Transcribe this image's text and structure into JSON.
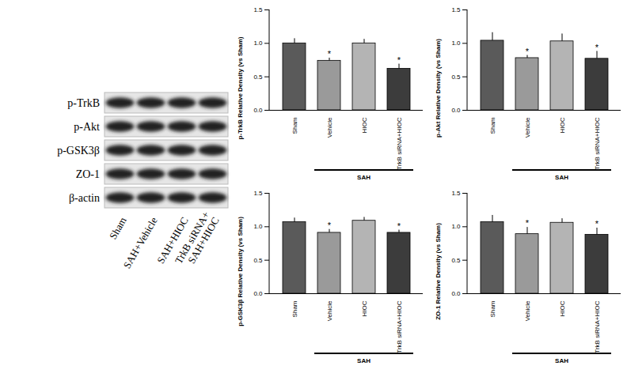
{
  "chart_data": [
    {
      "type": "bar",
      "y_label": "p-TrkB Relative Density (vs Sham)",
      "categories": [
        "Sham",
        "Vehicle",
        "HIOC",
        "TrkB siRNA+HIOC"
      ],
      "values": [
        1.0,
        0.74,
        1.0,
        0.62
      ],
      "errors": [
        0.07,
        0.04,
        0.06,
        0.07
      ],
      "colors": [
        "#5a5a5a",
        "#9a9a9a",
        "#b4b4b4",
        "#3c3c3c"
      ],
      "ylim": [
        0,
        1.5
      ],
      "yticks": [
        {
          "value": 0,
          "label": "0.0"
        },
        {
          "value": 0.5,
          "label": "0.5"
        },
        {
          "value": 1,
          "label": "1.0"
        },
        {
          "value": 1.5,
          "label": "1.5"
        }
      ],
      "annotations": [
        {
          "category": "Vehicle",
          "text": "*"
        },
        {
          "category": "TrkB siRNA+HIOC",
          "text": "*"
        }
      ],
      "group": {
        "label": "SAH",
        "categories": [
          "Vehicle",
          "HIOC",
          "TrkB siRNA+HIOC"
        ]
      }
    },
    {
      "type": "bar",
      "y_label": "p-Akt Relative Density (vs Sham)",
      "categories": [
        "Sham",
        "Vehicle",
        "HIOC",
        "TrkB siRNA+HIOC"
      ],
      "values": [
        1.04,
        0.78,
        1.03,
        0.77
      ],
      "errors": [
        0.12,
        0.04,
        0.11,
        0.11
      ],
      "colors": [
        "#5a5a5a",
        "#9a9a9a",
        "#b4b4b4",
        "#3c3c3c"
      ],
      "ylim": [
        0,
        1.5
      ],
      "yticks": [
        {
          "value": 0,
          "label": "0.0"
        },
        {
          "value": 0.5,
          "label": "0.5"
        },
        {
          "value": 1,
          "label": "1.0"
        },
        {
          "value": 1.5,
          "label": "1.5"
        }
      ],
      "annotations": [
        {
          "category": "Vehicle",
          "text": "*"
        },
        {
          "category": "TrkB siRNA+HIOC",
          "text": "*"
        }
      ],
      "group": {
        "label": "SAH",
        "categories": [
          "Vehicle",
          "HIOC",
          "TrkB siRNA+HIOC"
        ]
      }
    },
    {
      "type": "bar",
      "y_label": "p-GSK3β Relative Density (vs Sham)",
      "categories": [
        "Sham",
        "Vehicle",
        "HIOC",
        "TrkB siRNA+HIOC"
      ],
      "values": [
        1.07,
        0.91,
        1.09,
        0.91
      ],
      "errors": [
        0.06,
        0.05,
        0.05,
        0.04
      ],
      "colors": [
        "#5a5a5a",
        "#9a9a9a",
        "#b4b4b4",
        "#3c3c3c"
      ],
      "ylim": [
        0,
        1.5
      ],
      "yticks": [
        {
          "value": 0,
          "label": "0.0"
        },
        {
          "value": 0.5,
          "label": "0.5"
        },
        {
          "value": 1,
          "label": "1.0"
        },
        {
          "value": 1.5,
          "label": "1.5"
        }
      ],
      "annotations": [
        {
          "category": "Vehicle",
          "text": "*"
        },
        {
          "category": "TrkB siRNA+HIOC",
          "text": "*"
        }
      ],
      "group": {
        "label": "SAH",
        "categories": [
          "Vehicle",
          "HIOC",
          "TrkB siRNA+HIOC"
        ]
      }
    },
    {
      "type": "bar",
      "y_label": "ZO-1 Relative Density (vs Sham)",
      "categories": [
        "Sham",
        "Vehicle",
        "HIOC",
        "TrkB siRNA+HIOC"
      ],
      "values": [
        1.07,
        0.89,
        1.06,
        0.88
      ],
      "errors": [
        0.1,
        0.1,
        0.06,
        0.1
      ],
      "colors": [
        "#5a5a5a",
        "#9a9a9a",
        "#b4b4b4",
        "#3c3c3c"
      ],
      "ylim": [
        0,
        1.5
      ],
      "yticks": [
        {
          "value": 0,
          "label": "0.0"
        },
        {
          "value": 0.5,
          "label": "0.5"
        },
        {
          "value": 1,
          "label": "1.0"
        },
        {
          "value": 1.5,
          "label": "1.5"
        }
      ],
      "annotations": [
        {
          "category": "Vehicle",
          "text": "*"
        },
        {
          "category": "TrkB siRNA+HIOC",
          "text": "*"
        }
      ],
      "group": {
        "label": "SAH",
        "categories": [
          "Vehicle",
          "HIOC",
          "TrkB siRNA+HIOC"
        ]
      }
    }
  ],
  "blot": {
    "rows": [
      "p-TrkB",
      "p-Akt",
      "p-GSK3β",
      "ZO-1",
      "β-actin"
    ],
    "lanes": [
      "Sham",
      "SAH+Vehicle",
      "SAH+HIOC",
      "TrkB siRNA+\nSAH+HIOC"
    ]
  }
}
